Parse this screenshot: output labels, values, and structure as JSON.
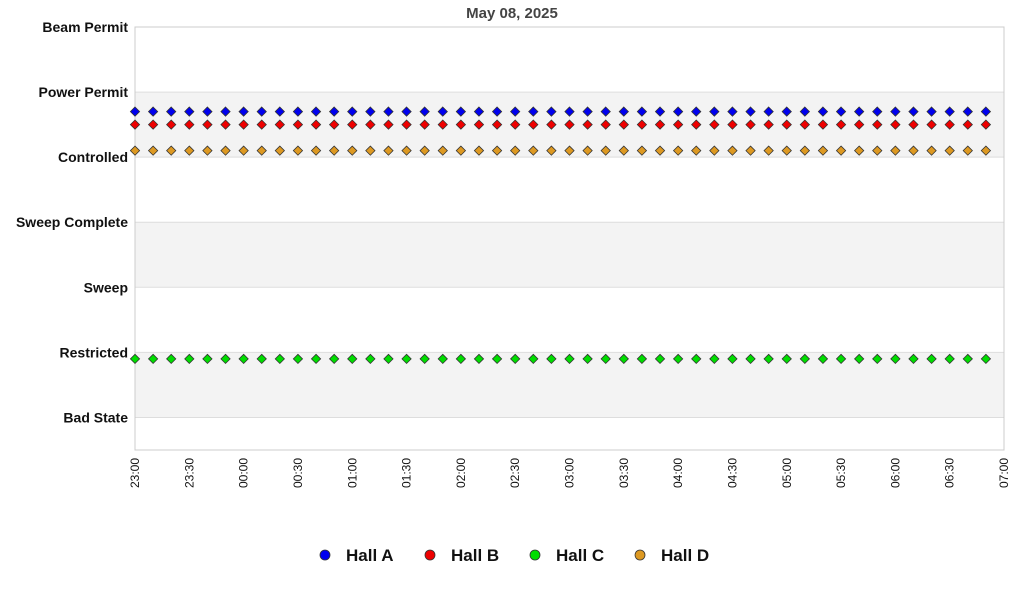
{
  "chart_data": {
    "type": "scatter",
    "title": "May 08, 2025",
    "xlabel": "",
    "ylabel": "",
    "y_categories": [
      "Bad State",
      "Restricted",
      "Sweep",
      "Sweep Complete",
      "Controlled",
      "Power Permit",
      "Beam Permit"
    ],
    "x_ticks": [
      "23:00",
      "23:30",
      "00:00",
      "00:30",
      "01:00",
      "01:30",
      "02:00",
      "02:30",
      "03:00",
      "03:30",
      "04:00",
      "04:30",
      "05:00",
      "05:30",
      "06:00",
      "06:30",
      "07:00"
    ],
    "x_range": [
      "23:00",
      "07:00"
    ],
    "x_sample": {
      "start": "23:00",
      "end": "06:50",
      "interval_minutes": 10
    },
    "legend_position": "bottom",
    "grid": true,
    "band_colors": [
      "#ffffff",
      "#f3f3f3"
    ],
    "series": [
      {
        "name": "Hall A",
        "color": "#0000ee",
        "value": 5.2
      },
      {
        "name": "Hall B",
        "color": "#ee0000",
        "value": 5.0
      },
      {
        "name": "Hall C",
        "color": "#00dd00",
        "value": 1.4
      },
      {
        "name": "Hall D",
        "color": "#dd9922",
        "value": 4.6
      }
    ]
  }
}
